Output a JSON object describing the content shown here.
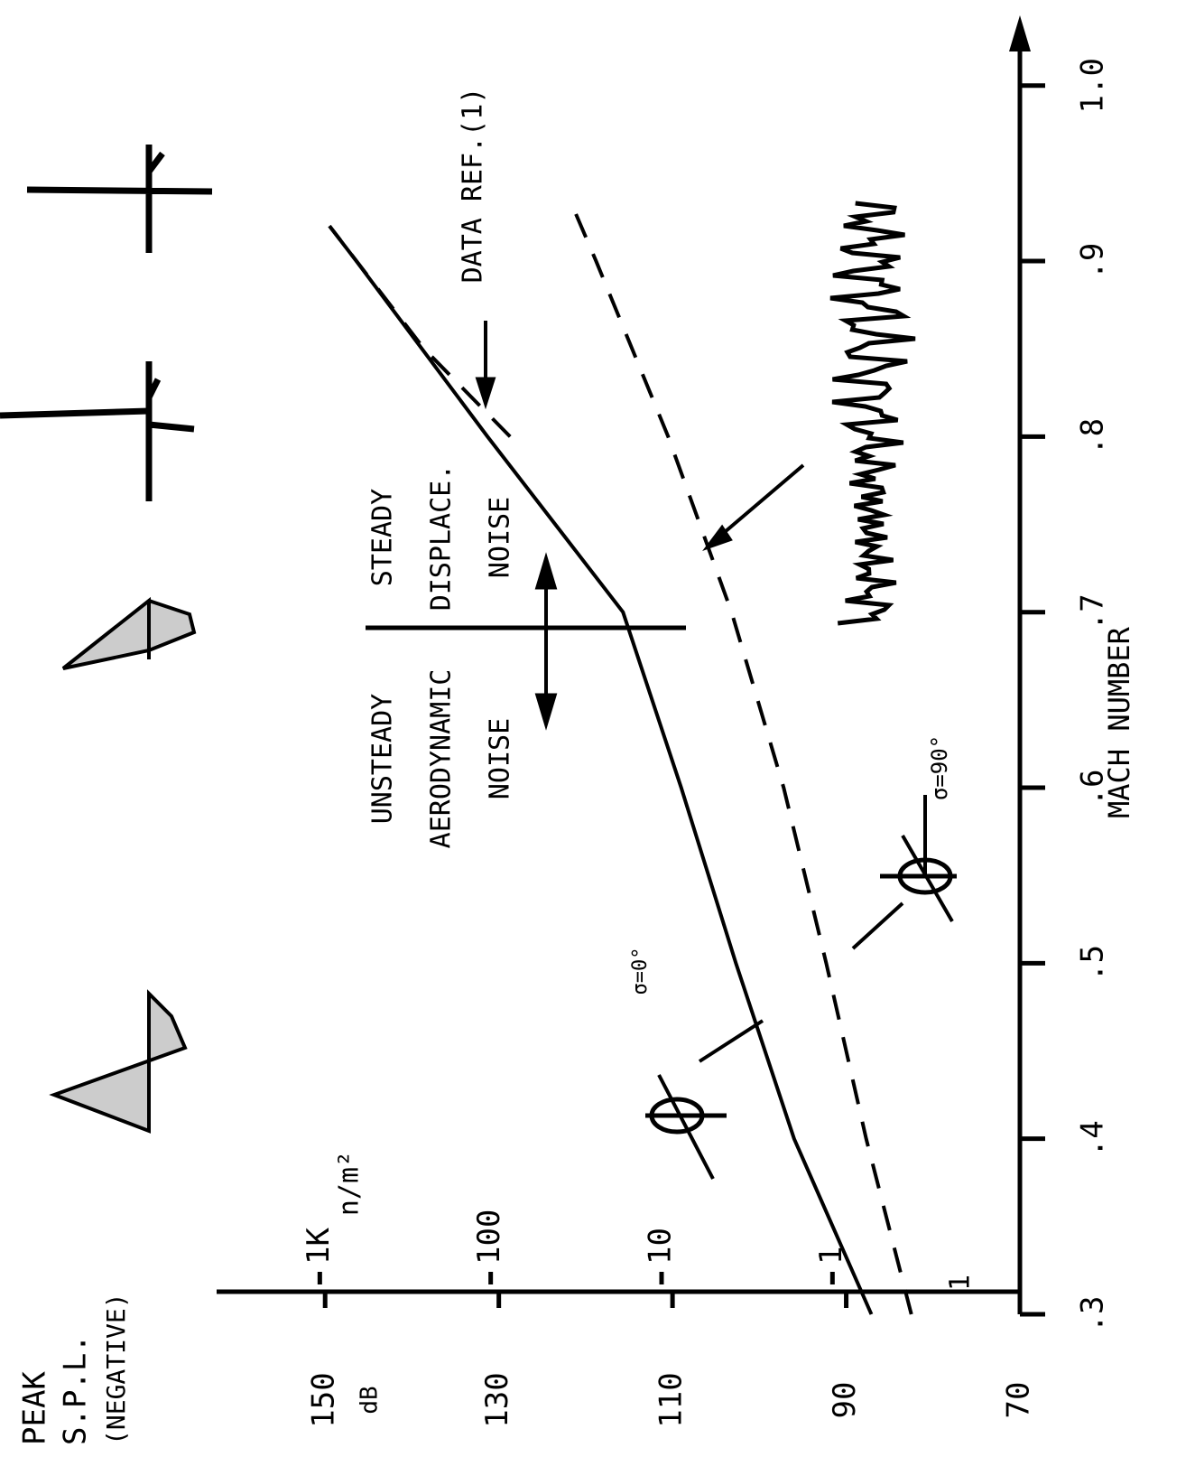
{
  "chart_data": {
    "type": "line",
    "ylabel": [
      "PEAK",
      "S.P.L.",
      "(NEGATIVE)"
    ],
    "yunit": "dB",
    "y2unit": "n/m²",
    "xlabel": "MACH NUMBER",
    "xlim": [
      0.3,
      1.04
    ],
    "xticks": [
      {
        "value": 0.3,
        "label": ".3"
      },
      {
        "value": 0.4,
        "label": ".4"
      },
      {
        "value": 0.5,
        "label": ".5"
      },
      {
        "value": 0.6,
        "label": ".6"
      },
      {
        "value": 0.7,
        "label": ".7"
      },
      {
        "value": 0.8,
        "label": ".8"
      },
      {
        "value": 0.9,
        "label": ".9"
      },
      {
        "value": 1,
        "label": "1.0"
      }
    ],
    "ylim": [
      70,
      160
    ],
    "yticks": [
      70,
      90,
      110,
      130,
      150
    ],
    "y2scale": "log",
    "y2lim": [
      0.08,
      3000
    ],
    "y2ticks": [
      1,
      10,
      100,
      {
        "value": 1000,
        "label": "1K"
      }
    ],
    "series": [
      {
        "color": "#000000",
        "dashed": false,
        "x": [
          0.3,
          0.4,
          0.5,
          0.6,
          0.7,
          0.8,
          0.9,
          0.92
        ],
        "values": [
          87.1,
          96,
          102.7,
          109,
          115.7,
          131.3,
          146.4,
          149.5
        ]
      },
      {
        "color": "#000000",
        "dashed": true,
        "x": [
          0.3,
          0.4,
          0.5,
          0.6,
          0.7,
          0.8,
          0.9,
          0.93
        ],
        "values": [
          82.5,
          87.7,
          92.3,
          97.2,
          103.2,
          110.5,
          118.8,
          121.4
        ]
      },
      {
        "color": "#000000",
        "dashed": true,
        "x": [
          0.8,
          0.85,
          0.92
        ],
        "values": [
          128.7,
          138.6,
          149.5
        ]
      }
    ],
    "annotations": [
      "UNSTEADY",
      "AERODYNAMIC",
      "NOISE",
      "STEADY",
      "DISPLACE.",
      "NOISE",
      "DATA REF.(1)",
      "σ=0°",
      "σ=90°",
      "1"
    ]
  }
}
